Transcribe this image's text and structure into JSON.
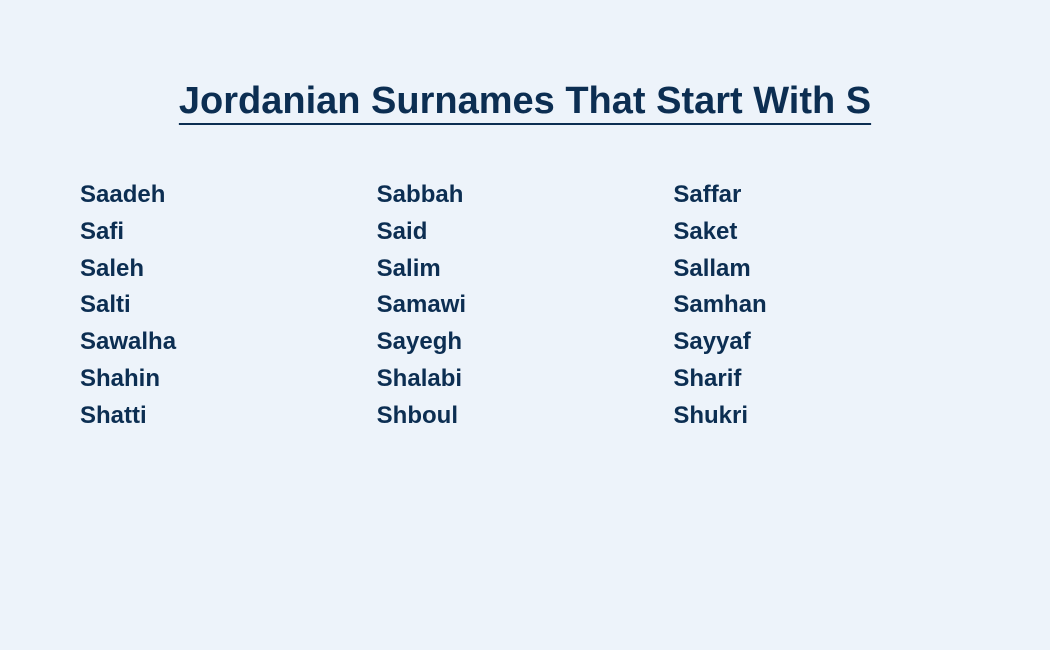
{
  "page": {
    "title": "Jordanian Surnames That Start With S",
    "background_color": "#edf3fa",
    "text_color": "#0c2e52",
    "title_fontsize": 38,
    "item_fontsize": 24
  },
  "columns": [
    {
      "items": [
        "Saadeh",
        "Safi",
        "Saleh",
        "Salti",
        "Sawalha",
        "Shahin",
        "Shatti"
      ]
    },
    {
      "items": [
        "Sabbah",
        "Said",
        "Salim",
        "Samawi",
        "Sayegh",
        "Shalabi",
        "Shboul"
      ]
    },
    {
      "items": [
        "Saffar",
        "Saket",
        "Sallam",
        "Samhan",
        "Sayyaf",
        "Sharif",
        "Shukri"
      ]
    }
  ]
}
